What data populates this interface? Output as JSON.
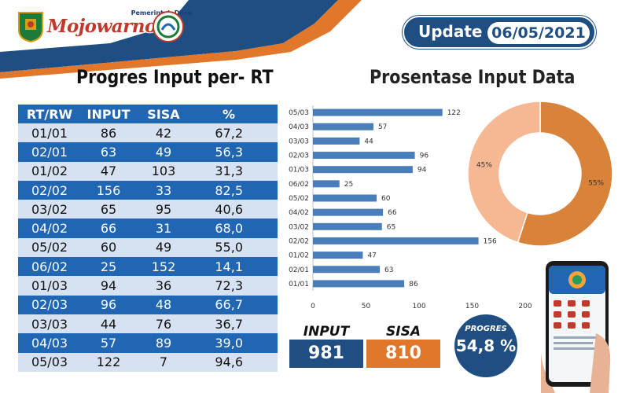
{
  "header": {
    "brand_subtitle": "Pemerintah Desa",
    "brand_name": "Mojowarno",
    "update_label": "Update :",
    "update_date": "06/05/2021"
  },
  "table": {
    "title": "Progres Input per- RT",
    "headers": [
      "RT/RW",
      "INPUT",
      "SISA",
      "%"
    ],
    "rows": [
      [
        "01/01",
        "86",
        "42",
        "67,2"
      ],
      [
        "02/01",
        "63",
        "49",
        "56,3"
      ],
      [
        "01/02",
        "47",
        "103",
        "31,3"
      ],
      [
        "02/02",
        "156",
        "33",
        "82,5"
      ],
      [
        "03/02",
        "65",
        "95",
        "40,6"
      ],
      [
        "04/02",
        "66",
        "31",
        "68,0"
      ],
      [
        "05/02",
        "60",
        "49",
        "55,0"
      ],
      [
        "06/02",
        "25",
        "152",
        "14,1"
      ],
      [
        "01/03",
        "94",
        "36",
        "72,3"
      ],
      [
        "02/03",
        "96",
        "48",
        "66,7"
      ],
      [
        "03/03",
        "44",
        "76",
        "36,7"
      ],
      [
        "04/03",
        "57",
        "89",
        "39,0"
      ],
      [
        "05/03",
        "122",
        "7",
        "94,6"
      ]
    ]
  },
  "right_title": "Prosentase Input Data",
  "summary": {
    "input_label": "INPUT",
    "input_value": "981",
    "sisa_label": "SISA",
    "sisa_value": "810",
    "progres_label": "PROGRES",
    "progres_value": "54,8 %"
  },
  "colors": {
    "blue": "#2166b3",
    "light_blue": "#d6e2f2",
    "navy": "#1f4f82",
    "orange": "#d9823a",
    "peach": "#f6b893",
    "bar": "#4a7ebb"
  },
  "chart_data": [
    {
      "type": "bar",
      "orientation": "horizontal",
      "categories": [
        "05/03",
        "04/03",
        "03/03",
        "02/03",
        "01/03",
        "06/02",
        "05/02",
        "04/02",
        "03/02",
        "02/02",
        "01/02",
        "02/01",
        "01/01"
      ],
      "values": [
        122,
        57,
        44,
        96,
        94,
        25,
        60,
        66,
        65,
        156,
        47,
        63,
        86
      ],
      "xlim": [
        0,
        200
      ],
      "xticks": [
        0,
        50,
        100,
        150,
        200
      ],
      "data_labels": true,
      "grid": false
    },
    {
      "type": "pie",
      "style": "donut",
      "slices": [
        {
          "label": "55%",
          "value": 55,
          "color": "#d9823a"
        },
        {
          "label": "45%",
          "value": 45,
          "color": "#f6b893"
        }
      ]
    }
  ]
}
